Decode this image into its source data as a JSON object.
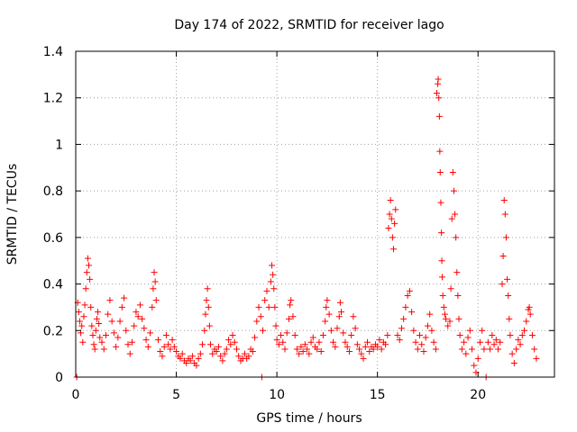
{
  "chart_data": {
    "type": "scatter",
    "title": "Day 174 of 2022, SRMTID for receiver lago",
    "xlabel": "GPS time / hours",
    "ylabel": "SRMTID / TECUs",
    "xlim": [
      0,
      23.8
    ],
    "ylim": [
      0,
      1.4
    ],
    "x_ticks": [
      0,
      5,
      10,
      15,
      20
    ],
    "x_tick_labels": [
      "0",
      "5",
      "10",
      "15",
      "20"
    ],
    "y_ticks": [
      0,
      0.2,
      0.4,
      0.6,
      0.8,
      1.0,
      1.2,
      1.4
    ],
    "y_tick_labels": [
      "0",
      "0.2",
      "0.4",
      "0.6",
      "0.8",
      "1",
      "1.2",
      "1.4"
    ],
    "grid": true,
    "marker": "+",
    "series": [
      {
        "name": "SRMTID",
        "color": "#ff0000",
        "points": [
          [
            0.05,
            0.0
          ],
          [
            0.1,
            0.32
          ],
          [
            0.15,
            0.28
          ],
          [
            0.2,
            0.24
          ],
          [
            0.25,
            0.19
          ],
          [
            0.3,
            0.22
          ],
          [
            0.35,
            0.15
          ],
          [
            0.4,
            0.26
          ],
          [
            0.45,
            0.31
          ],
          [
            0.5,
            0.38
          ],
          [
            0.55,
            0.45
          ],
          [
            0.6,
            0.51
          ],
          [
            0.65,
            0.48
          ],
          [
            0.7,
            0.42
          ],
          [
            0.75,
            0.3
          ],
          [
            0.8,
            0.22
          ],
          [
            0.85,
            0.18
          ],
          [
            0.9,
            0.14
          ],
          [
            0.95,
            0.12
          ],
          [
            1.0,
            0.2
          ],
          [
            1.05,
            0.25
          ],
          [
            1.1,
            0.28
          ],
          [
            1.15,
            0.23
          ],
          [
            1.2,
            0.17
          ],
          [
            1.3,
            0.15
          ],
          [
            1.4,
            0.12
          ],
          [
            1.5,
            0.18
          ],
          [
            1.6,
            0.27
          ],
          [
            1.7,
            0.33
          ],
          [
            1.8,
            0.24
          ],
          [
            1.9,
            0.19
          ],
          [
            2.0,
            0.13
          ],
          [
            2.1,
            0.17
          ],
          [
            2.2,
            0.24
          ],
          [
            2.3,
            0.3
          ],
          [
            2.4,
            0.34
          ],
          [
            2.5,
            0.2
          ],
          [
            2.6,
            0.14
          ],
          [
            2.7,
            0.1
          ],
          [
            2.8,
            0.15
          ],
          [
            2.9,
            0.22
          ],
          [
            3.0,
            0.28
          ],
          [
            3.1,
            0.26
          ],
          [
            3.2,
            0.31
          ],
          [
            3.3,
            0.25
          ],
          [
            3.4,
            0.21
          ],
          [
            3.5,
            0.16
          ],
          [
            3.6,
            0.13
          ],
          [
            3.7,
            0.19
          ],
          [
            3.8,
            0.3
          ],
          [
            3.85,
            0.38
          ],
          [
            3.9,
            0.45
          ],
          [
            3.95,
            0.41
          ],
          [
            4.0,
            0.33
          ],
          [
            4.1,
            0.16
          ],
          [
            4.2,
            0.11
          ],
          [
            4.3,
            0.09
          ],
          [
            4.4,
            0.13
          ],
          [
            4.5,
            0.18
          ],
          [
            4.6,
            0.14
          ],
          [
            4.7,
            0.12
          ],
          [
            4.8,
            0.16
          ],
          [
            4.9,
            0.13
          ],
          [
            5.0,
            0.11
          ],
          [
            5.1,
            0.09
          ],
          [
            5.2,
            0.08
          ],
          [
            5.3,
            0.1
          ],
          [
            5.4,
            0.07
          ],
          [
            5.5,
            0.06
          ],
          [
            5.6,
            0.08
          ],
          [
            5.7,
            0.07
          ],
          [
            5.8,
            0.09
          ],
          [
            5.9,
            0.06
          ],
          [
            6.0,
            0.05
          ],
          [
            6.1,
            0.08
          ],
          [
            6.2,
            0.1
          ],
          [
            6.3,
            0.14
          ],
          [
            6.4,
            0.2
          ],
          [
            6.45,
            0.27
          ],
          [
            6.5,
            0.33
          ],
          [
            6.55,
            0.38
          ],
          [
            6.6,
            0.3
          ],
          [
            6.65,
            0.22
          ],
          [
            6.7,
            0.14
          ],
          [
            6.8,
            0.1
          ],
          [
            6.9,
            0.12
          ],
          [
            7.0,
            0.11
          ],
          [
            7.1,
            0.13
          ],
          [
            7.2,
            0.09
          ],
          [
            7.3,
            0.07
          ],
          [
            7.4,
            0.1
          ],
          [
            7.5,
            0.12
          ],
          [
            7.6,
            0.16
          ],
          [
            7.7,
            0.14
          ],
          [
            7.8,
            0.18
          ],
          [
            7.9,
            0.15
          ],
          [
            8.0,
            0.12
          ],
          [
            8.1,
            0.09
          ],
          [
            8.2,
            0.07
          ],
          [
            8.3,
            0.08
          ],
          [
            8.4,
            0.1
          ],
          [
            8.5,
            0.08
          ],
          [
            8.6,
            0.09
          ],
          [
            8.7,
            0.12
          ],
          [
            8.8,
            0.11
          ],
          [
            8.9,
            0.17
          ],
          [
            9.0,
            0.24
          ],
          [
            9.1,
            0.3
          ],
          [
            9.2,
            0.26
          ],
          [
            9.25,
            0.0
          ],
          [
            9.3,
            0.2
          ],
          [
            9.4,
            0.33
          ],
          [
            9.5,
            0.37
          ],
          [
            9.6,
            0.3
          ],
          [
            9.7,
            0.41
          ],
          [
            9.75,
            0.48
          ],
          [
            9.8,
            0.44
          ],
          [
            9.85,
            0.38
          ],
          [
            9.9,
            0.3
          ],
          [
            9.95,
            0.22
          ],
          [
            10.0,
            0.16
          ],
          [
            10.1,
            0.14
          ],
          [
            10.2,
            0.18
          ],
          [
            10.3,
            0.15
          ],
          [
            10.4,
            0.12
          ],
          [
            10.5,
            0.19
          ],
          [
            10.6,
            0.25
          ],
          [
            10.65,
            0.31
          ],
          [
            10.7,
            0.33
          ],
          [
            10.8,
            0.26
          ],
          [
            10.9,
            0.18
          ],
          [
            11.0,
            0.12
          ],
          [
            11.1,
            0.1
          ],
          [
            11.2,
            0.13
          ],
          [
            11.3,
            0.11
          ],
          [
            11.4,
            0.14
          ],
          [
            11.5,
            0.12
          ],
          [
            11.6,
            0.1
          ],
          [
            11.7,
            0.15
          ],
          [
            11.8,
            0.17
          ],
          [
            11.9,
            0.13
          ],
          [
            12.0,
            0.12
          ],
          [
            12.1,
            0.15
          ],
          [
            12.2,
            0.11
          ],
          [
            12.3,
            0.18
          ],
          [
            12.4,
            0.24
          ],
          [
            12.45,
            0.3
          ],
          [
            12.5,
            0.33
          ],
          [
            12.6,
            0.27
          ],
          [
            12.7,
            0.2
          ],
          [
            12.8,
            0.15
          ],
          [
            12.9,
            0.13
          ],
          [
            13.0,
            0.21
          ],
          [
            13.1,
            0.26
          ],
          [
            13.15,
            0.32
          ],
          [
            13.2,
            0.28
          ],
          [
            13.3,
            0.19
          ],
          [
            13.4,
            0.15
          ],
          [
            13.5,
            0.13
          ],
          [
            13.6,
            0.11
          ],
          [
            13.7,
            0.18
          ],
          [
            13.8,
            0.26
          ],
          [
            13.9,
            0.21
          ],
          [
            14.0,
            0.14
          ],
          [
            14.1,
            0.12
          ],
          [
            14.2,
            0.1
          ],
          [
            14.3,
            0.08
          ],
          [
            14.4,
            0.13
          ],
          [
            14.5,
            0.15
          ],
          [
            14.6,
            0.11
          ],
          [
            14.7,
            0.13
          ],
          [
            14.8,
            0.12
          ],
          [
            14.9,
            0.14
          ],
          [
            15.0,
            0.13
          ],
          [
            15.1,
            0.16
          ],
          [
            15.2,
            0.12
          ],
          [
            15.3,
            0.15
          ],
          [
            15.4,
            0.14
          ],
          [
            15.5,
            0.18
          ],
          [
            15.55,
            0.64
          ],
          [
            15.6,
            0.7
          ],
          [
            15.65,
            0.76
          ],
          [
            15.7,
            0.68
          ],
          [
            15.75,
            0.6
          ],
          [
            15.8,
            0.55
          ],
          [
            15.85,
            0.66
          ],
          [
            15.9,
            0.72
          ],
          [
            16.0,
            0.18
          ],
          [
            16.1,
            0.16
          ],
          [
            16.2,
            0.21
          ],
          [
            16.3,
            0.25
          ],
          [
            16.4,
            0.3
          ],
          [
            16.5,
            0.35
          ],
          [
            16.6,
            0.37
          ],
          [
            16.7,
            0.28
          ],
          [
            16.8,
            0.2
          ],
          [
            16.9,
            0.15
          ],
          [
            17.0,
            0.12
          ],
          [
            17.1,
            0.18
          ],
          [
            17.2,
            0.14
          ],
          [
            17.3,
            0.11
          ],
          [
            17.4,
            0.17
          ],
          [
            17.5,
            0.22
          ],
          [
            17.6,
            0.27
          ],
          [
            17.7,
            0.2
          ],
          [
            17.8,
            0.15
          ],
          [
            17.9,
            0.12
          ],
          [
            17.95,
            1.22
          ],
          [
            18.0,
            1.26
          ],
          [
            18.02,
            1.28
          ],
          [
            18.05,
            1.2
          ],
          [
            18.08,
            1.12
          ],
          [
            18.1,
            0.97
          ],
          [
            18.12,
            0.88
          ],
          [
            18.15,
            0.75
          ],
          [
            18.18,
            0.62
          ],
          [
            18.2,
            0.5
          ],
          [
            18.22,
            0.43
          ],
          [
            18.25,
            0.35
          ],
          [
            18.3,
            0.3
          ],
          [
            18.35,
            0.27
          ],
          [
            18.4,
            0.25
          ],
          [
            18.5,
            0.22
          ],
          [
            18.6,
            0.24
          ],
          [
            18.65,
            0.38
          ],
          [
            18.7,
            0.68
          ],
          [
            18.75,
            0.88
          ],
          [
            18.8,
            0.8
          ],
          [
            18.85,
            0.7
          ],
          [
            18.9,
            0.6
          ],
          [
            18.95,
            0.45
          ],
          [
            19.0,
            0.35
          ],
          [
            19.05,
            0.25
          ],
          [
            19.1,
            0.18
          ],
          [
            19.2,
            0.12
          ],
          [
            19.3,
            0.15
          ],
          [
            19.4,
            0.1
          ],
          [
            19.5,
            0.17
          ],
          [
            19.6,
            0.2
          ],
          [
            19.7,
            0.12
          ],
          [
            19.8,
            0.05
          ],
          [
            19.9,
            0.02
          ],
          [
            20.0,
            0.08
          ],
          [
            20.1,
            0.15
          ],
          [
            20.2,
            0.2
          ],
          [
            20.3,
            0.12
          ],
          [
            20.4,
            0.0
          ],
          [
            20.5,
            0.15
          ],
          [
            20.6,
            0.12
          ],
          [
            20.7,
            0.18
          ],
          [
            20.8,
            0.14
          ],
          [
            20.9,
            0.16
          ],
          [
            21.0,
            0.12
          ],
          [
            21.1,
            0.15
          ],
          [
            21.2,
            0.4
          ],
          [
            21.25,
            0.52
          ],
          [
            21.3,
            0.76
          ],
          [
            21.35,
            0.7
          ],
          [
            21.4,
            0.6
          ],
          [
            21.45,
            0.42
          ],
          [
            21.5,
            0.35
          ],
          [
            21.55,
            0.25
          ],
          [
            21.6,
            0.18
          ],
          [
            21.7,
            0.1
          ],
          [
            21.8,
            0.06
          ],
          [
            21.9,
            0.12
          ],
          [
            22.0,
            0.16
          ],
          [
            22.1,
            0.14
          ],
          [
            22.2,
            0.18
          ],
          [
            22.3,
            0.2
          ],
          [
            22.4,
            0.24
          ],
          [
            22.5,
            0.29
          ],
          [
            22.55,
            0.3
          ],
          [
            22.6,
            0.27
          ],
          [
            22.7,
            0.18
          ],
          [
            22.8,
            0.12
          ],
          [
            22.9,
            0.08
          ]
        ]
      }
    ]
  }
}
